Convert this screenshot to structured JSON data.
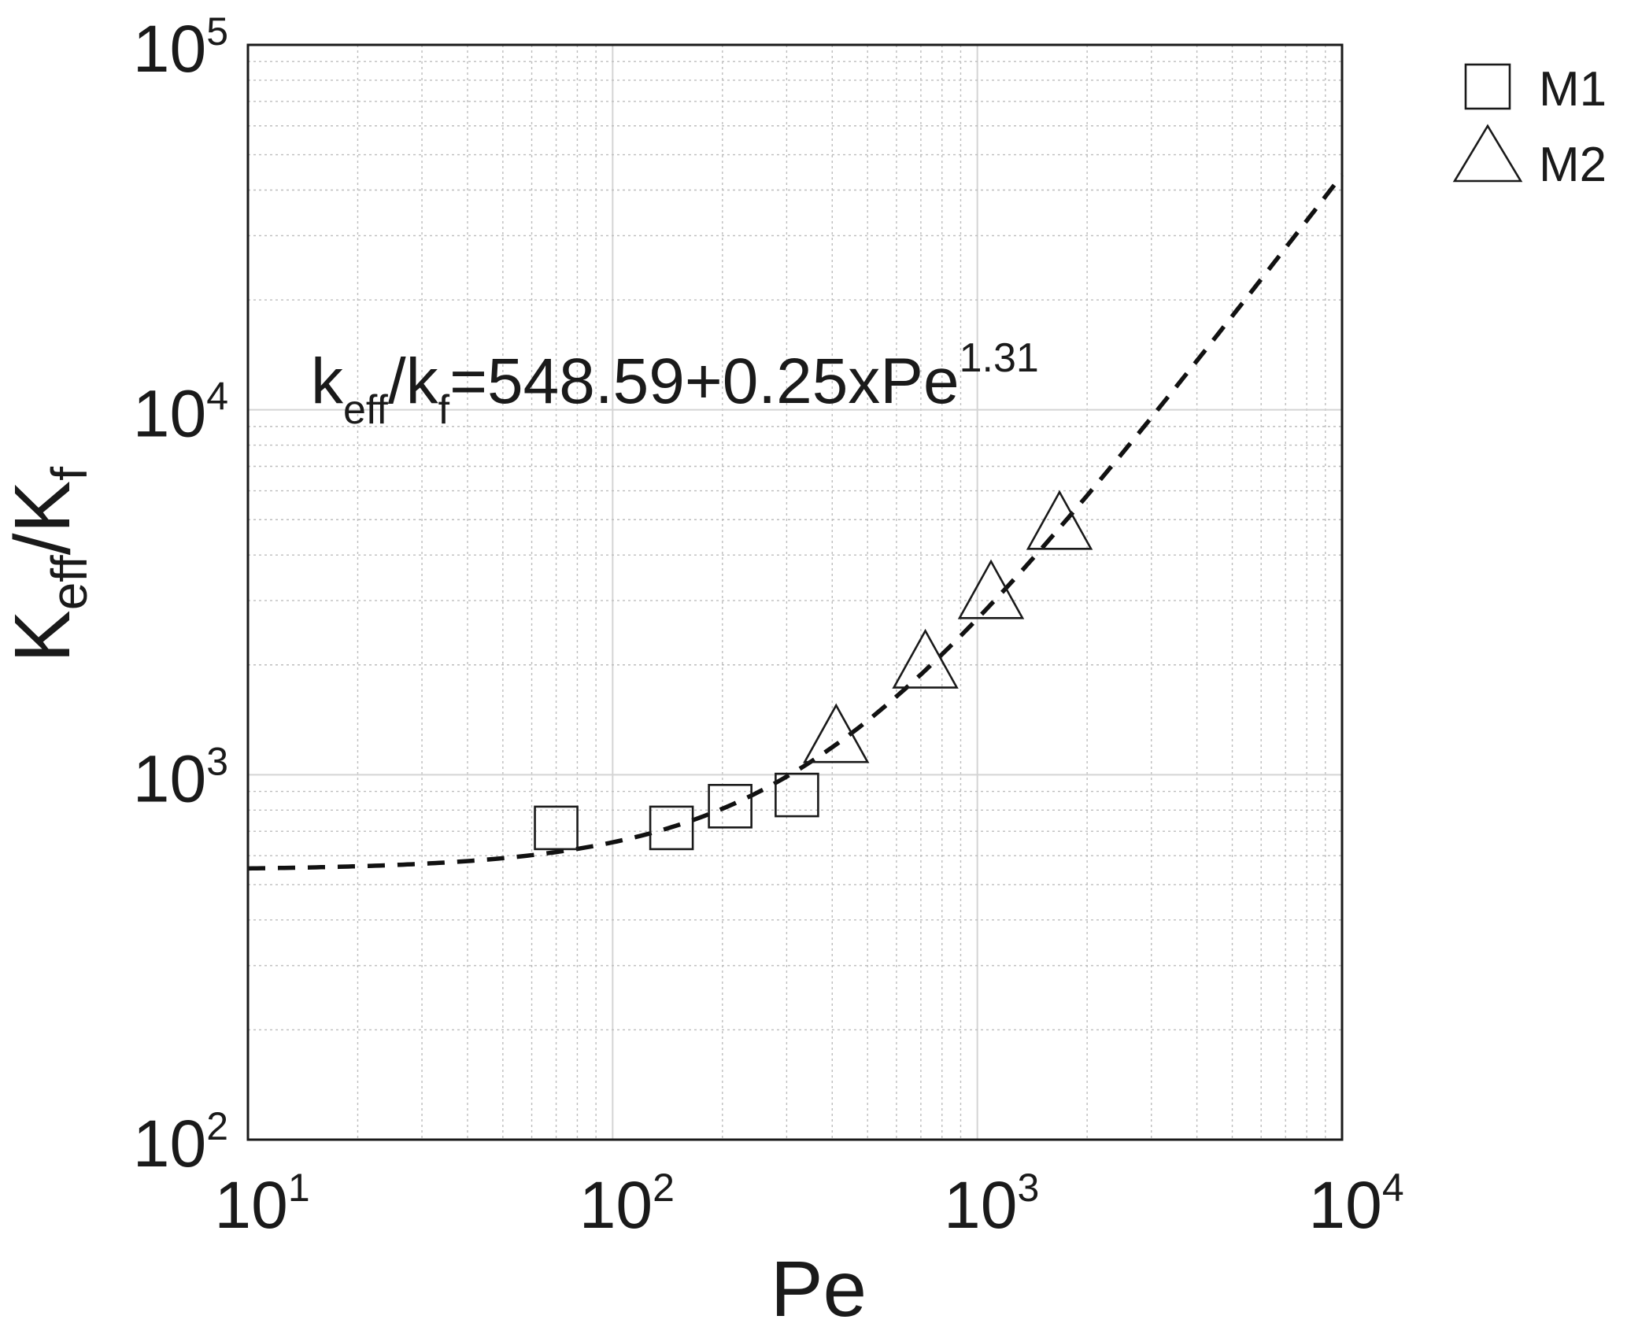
{
  "chart_data": {
    "type": "scatter",
    "xlabel": "Pe",
    "ylabel": {
      "base": "K",
      "sub1": "eff",
      "slash": "/K",
      "sub2": "f"
    },
    "xscale": "log",
    "yscale": "log",
    "xlim": [
      10,
      10000
    ],
    "ylim": [
      100,
      100000
    ],
    "grid": true,
    "legend_position": "outside-top-right",
    "x_ticks": [
      {
        "base": "10",
        "exp": "1"
      },
      {
        "base": "10",
        "exp": "2"
      },
      {
        "base": "10",
        "exp": "3"
      },
      {
        "base": "10",
        "exp": "4"
      }
    ],
    "y_ticks": [
      {
        "base": "10",
        "exp": "2"
      },
      {
        "base": "10",
        "exp": "3"
      },
      {
        "base": "10",
        "exp": "4"
      },
      {
        "base": "10",
        "exp": "5"
      }
    ],
    "series": [
      {
        "name": "M1",
        "marker": "square",
        "x": [
          70,
          145,
          210,
          320
        ],
        "y": [
          715,
          715,
          820,
          880
        ]
      },
      {
        "name": "M2",
        "marker": "triangle",
        "x": [
          410,
          720,
          1090,
          1680
        ],
        "y": [
          1250,
          2000,
          3100,
          4800
        ]
      }
    ],
    "fit": {
      "style": "dashed",
      "intercept": 548.59,
      "coefficient": 0.25,
      "exponent": 1.31
    },
    "annotation": {
      "k1": "k",
      "sub1": "eff",
      "slash": "/k",
      "sub2": "f",
      "rhs": "=548.59+0.25xPe",
      "sup": "1.31"
    }
  }
}
